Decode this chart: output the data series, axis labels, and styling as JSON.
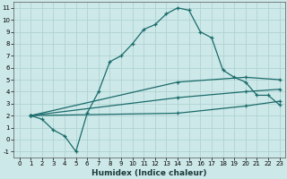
{
  "xlabel": "Humidex (Indice chaleur)",
  "background_color": "#cde8e8",
  "grid_color": "#aacfcf",
  "line_color": "#1a6b6b",
  "xlim": [
    -0.5,
    23.5
  ],
  "ylim": [
    -1.5,
    11.5
  ],
  "xticks": [
    0,
    1,
    2,
    3,
    4,
    5,
    6,
    7,
    8,
    9,
    10,
    11,
    12,
    13,
    14,
    15,
    16,
    17,
    18,
    19,
    20,
    21,
    22,
    23
  ],
  "yticks": [
    -1,
    0,
    1,
    2,
    3,
    4,
    5,
    6,
    7,
    8,
    9,
    10,
    11
  ],
  "line1_x": [
    1,
    2,
    3,
    4,
    5,
    6,
    7,
    8,
    9,
    10,
    11,
    12,
    13,
    14,
    15,
    16,
    17,
    18,
    19,
    20,
    21,
    22,
    23
  ],
  "line1_y": [
    2.0,
    1.7,
    0.8,
    0.3,
    -1.0,
    2.2,
    4.0,
    6.5,
    7.0,
    8.0,
    9.2,
    9.6,
    10.5,
    11.0,
    10.8,
    9.0,
    8.5,
    5.8,
    5.2,
    4.8,
    3.7,
    3.7,
    2.9
  ],
  "line2_x": [
    1,
    14,
    20,
    23
  ],
  "line2_y": [
    2.0,
    4.8,
    5.2,
    5.0
  ],
  "line3_x": [
    1,
    14,
    20,
    23
  ],
  "line3_y": [
    2.0,
    3.5,
    4.0,
    4.2
  ],
  "line4_x": [
    1,
    14,
    20,
    23
  ],
  "line4_y": [
    2.0,
    2.2,
    2.8,
    3.2
  ]
}
